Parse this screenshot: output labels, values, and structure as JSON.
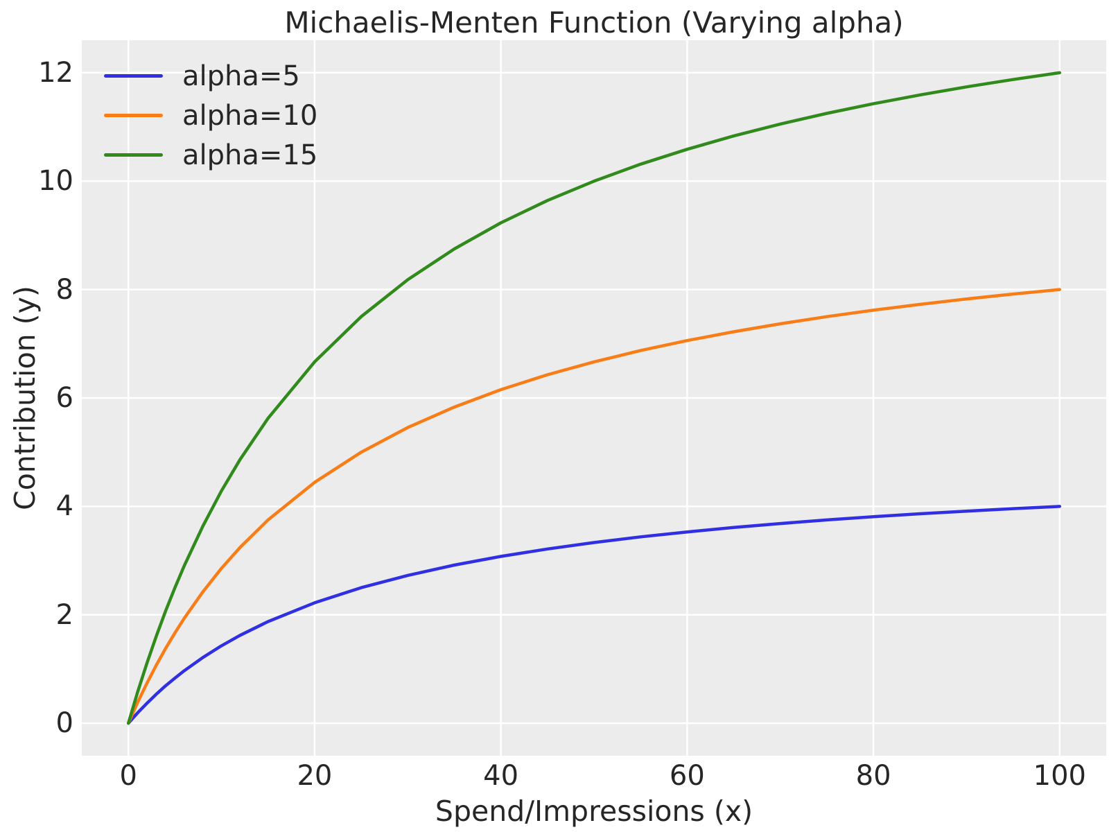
{
  "figure": {
    "background": "#ffffff",
    "panel_background": "#ececec",
    "grid_color": "#ffffff",
    "text_color": "#262626"
  },
  "chart_data": {
    "type": "line",
    "title": "Michaelis-Menten Function (Varying alpha)",
    "xlabel": "Spend/Impressions (x)",
    "ylabel": "Contribution (y)",
    "xlim": [
      -5,
      105
    ],
    "ylim": [
      -0.6,
      12.6
    ],
    "x_ticks": [
      0,
      20,
      40,
      60,
      80,
      100
    ],
    "y_ticks": [
      0,
      2,
      4,
      6,
      8,
      10,
      12
    ],
    "grid": true,
    "legend_position": "upper left",
    "function": "y = alpha * x / (x + 25)",
    "x": [
      0,
      1,
      2,
      3,
      4,
      5,
      6,
      8,
      10,
      12,
      15,
      20,
      25,
      30,
      35,
      40,
      45,
      50,
      55,
      60,
      65,
      70,
      75,
      80,
      85,
      90,
      95,
      100
    ],
    "series": [
      {
        "name": "alpha=5",
        "alpha": 5,
        "color": "#3030e2",
        "y": [
          0,
          0.192,
          0.37,
          0.536,
          0.69,
          0.833,
          0.968,
          1.212,
          1.429,
          1.622,
          1.875,
          2.222,
          2.5,
          2.727,
          2.917,
          3.077,
          3.214,
          3.333,
          3.438,
          3.529,
          3.611,
          3.684,
          3.75,
          3.81,
          3.864,
          3.913,
          3.958,
          4.0
        ]
      },
      {
        "name": "alpha=10",
        "alpha": 10,
        "color": "#f97d16",
        "y": [
          0,
          0.385,
          0.741,
          1.071,
          1.379,
          1.667,
          1.935,
          2.424,
          2.857,
          3.243,
          3.75,
          4.444,
          5.0,
          5.455,
          5.833,
          6.154,
          6.429,
          6.667,
          6.875,
          7.059,
          7.222,
          7.368,
          7.5,
          7.619,
          7.727,
          7.826,
          7.917,
          8.0
        ]
      },
      {
        "name": "alpha=15",
        "alpha": 15,
        "color": "#318a1c",
        "y": [
          0,
          0.577,
          1.111,
          1.607,
          2.069,
          2.5,
          2.903,
          3.636,
          4.286,
          4.865,
          5.625,
          6.667,
          7.5,
          8.182,
          8.75,
          9.231,
          9.643,
          10.0,
          10.313,
          10.588,
          10.833,
          11.053,
          11.25,
          11.429,
          11.591,
          11.739,
          11.875,
          12.0
        ]
      }
    ]
  }
}
